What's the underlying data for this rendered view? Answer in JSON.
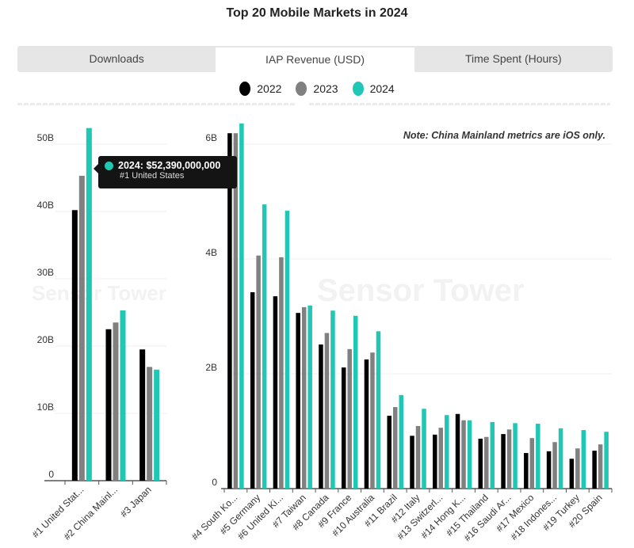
{
  "title": "Top 20 Mobile Markets in 2024",
  "tabs": [
    {
      "label": "Downloads",
      "active": false
    },
    {
      "label": "IAP Revenue (USD)",
      "active": true
    },
    {
      "label": "Time Spent (Hours)",
      "active": false
    }
  ],
  "note": "Note: China Mainland metrics are iOS only.",
  "watermark": "Sensor Tower",
  "tooltip": {
    "series": "2024",
    "value": "2024: $52,390,000,000",
    "category": "#1 United States"
  },
  "colors": {
    "2022": "#000000",
    "2023": "#808080",
    "2024": "#1fc7b4"
  },
  "chart_data": [
    {
      "type": "bar",
      "legend": [
        "2022",
        "2023",
        "2024"
      ],
      "legend_placement": "top",
      "grid": true,
      "ylim": [
        0,
        50000000000
      ],
      "yticks": [
        "0",
        "10B",
        "20B",
        "30B",
        "40B",
        "50B"
      ],
      "categories": [
        "#1 United Stat...",
        "#2 China Mainl...",
        "#3 Japan"
      ],
      "series": [
        {
          "name": "2022",
          "values": [
            40.2,
            22.5,
            19.5
          ]
        },
        {
          "name": "2023",
          "values": [
            45.3,
            23.5,
            16.9
          ]
        },
        {
          "name": "2024",
          "values": [
            52.39,
            25.3,
            16.5
          ]
        }
      ],
      "unit": "B USD"
    },
    {
      "type": "bar",
      "grid": true,
      "ylim": [
        0,
        6000000000
      ],
      "yticks": [
        "0",
        "2B",
        "4B",
        "6B"
      ],
      "categories": [
        "#4 South Ko...",
        "#5 Germany",
        "#6 United Ki...",
        "#7 Taiwan",
        "#8 Canada",
        "#9 France",
        "#10 Australia",
        "#11 Brazil",
        "#12 Italy",
        "#13 Switzerl...",
        "#14 Hong K...",
        "#15 Thailand",
        "#16 Saudi Ar...",
        "#17 Mexico",
        "#18 Indones...",
        "#19 Turkey",
        "#20 Spain"
      ],
      "series": [
        {
          "name": "2022",
          "values": [
            6.19,
            3.42,
            3.35,
            3.06,
            2.51,
            2.11,
            2.25,
            1.27,
            0.92,
            0.94,
            1.3,
            0.87,
            0.95,
            0.62,
            0.65,
            0.52,
            0.66
          ]
        },
        {
          "name": "2023",
          "values": [
            6.19,
            4.06,
            4.03,
            3.16,
            2.71,
            2.43,
            2.37,
            1.42,
            1.09,
            1.06,
            1.19,
            0.9,
            1.03,
            0.88,
            0.81,
            0.7,
            0.77
          ]
        },
        {
          "name": "2024",
          "values": [
            6.36,
            4.95,
            4.84,
            3.19,
            3.1,
            3.01,
            2.74,
            1.63,
            1.39,
            1.28,
            1.19,
            1.16,
            1.14,
            1.13,
            1.05,
            1.02,
            0.99
          ]
        }
      ],
      "unit": "B USD"
    }
  ]
}
